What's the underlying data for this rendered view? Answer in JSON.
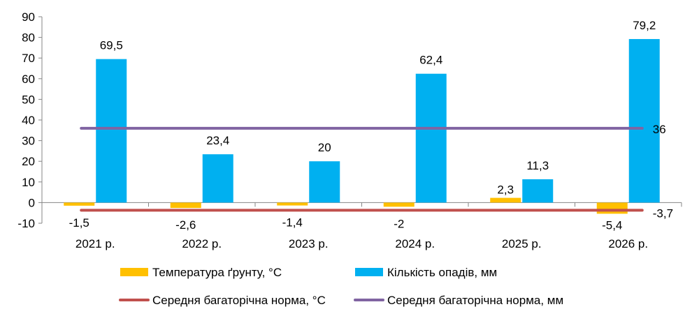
{
  "chart_data": {
    "type": "bar",
    "categories": [
      "2021 р.",
      "2022 р.",
      "2023 р.",
      "2024 р.",
      "2025 р.",
      "2026 р."
    ],
    "ylim": [
      -10,
      90
    ],
    "yticks": [
      -10,
      0,
      10,
      20,
      30,
      40,
      50,
      60,
      70,
      80,
      90
    ],
    "grid": false,
    "legend_position": "bottom",
    "series": [
      {
        "name": "Температура ґрунту, °С",
        "kind": "bar",
        "color": "#FFC000",
        "values": [
          -1.5,
          -2.6,
          -1.4,
          -2.0,
          2.3,
          -5.4
        ],
        "labels": [
          "-1,5",
          "-2,6",
          "-1,4",
          "-2",
          "2,3",
          "-5,4"
        ]
      },
      {
        "name": "Кількість опадів, мм",
        "kind": "bar",
        "color": "#00B0F0",
        "values": [
          69.5,
          23.4,
          20.0,
          62.4,
          11.3,
          79.2
        ],
        "labels": [
          "69,5",
          "23,4",
          "20",
          "62,4",
          "11,3",
          "79,2"
        ]
      },
      {
        "name": "Середня багаторічна норма, °С",
        "kind": "line",
        "color": "#C0504D",
        "value": -3.7,
        "label": "-3,7"
      },
      {
        "name": "Середня багаторічна норма, мм",
        "kind": "line",
        "color": "#8064A2",
        "value": 36,
        "label": "36"
      }
    ]
  }
}
